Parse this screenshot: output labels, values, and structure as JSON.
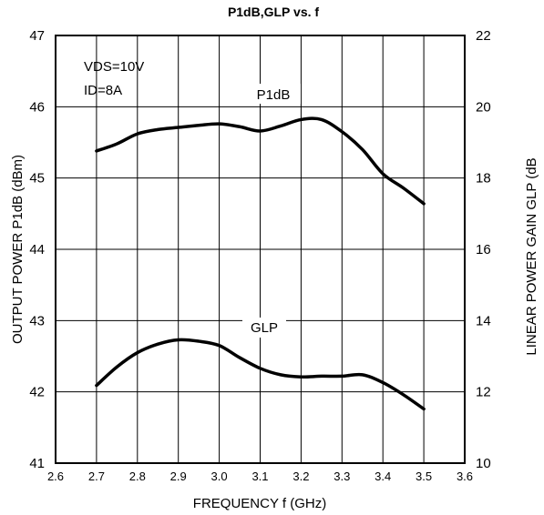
{
  "chart_data": {
    "type": "line",
    "title": "P1dB,GLP vs. f",
    "xlabel": "FREQUENCY f (GHz)",
    "ylabel_left": "OUTPUT POWER P1dB (dBm)",
    "ylabel_right": "LINEAR POWER GAIN GLP (dB",
    "x_ticks": [
      "2.6",
      "2.7",
      "2.8",
      "2.9",
      "3.0",
      "3.1",
      "3.2",
      "3.3",
      "3.4",
      "3.5",
      "3.6"
    ],
    "xlim": [
      2.6,
      3.6
    ],
    "ylim_left": [
      41,
      47
    ],
    "yticks_left": [
      "41",
      "42",
      "43",
      "44",
      "45",
      "46",
      "47"
    ],
    "ylim_right": [
      10,
      22
    ],
    "yticks_right": [
      "10",
      "12",
      "14",
      "16",
      "18",
      "20",
      "22"
    ],
    "grid": true,
    "annotations": [
      "VDS=10V",
      "ID=8A"
    ],
    "series": [
      {
        "name": "P1dB",
        "axis": "left",
        "x": [
          2.7,
          2.75,
          2.8,
          2.85,
          2.9,
          2.95,
          3.0,
          3.05,
          3.1,
          3.15,
          3.2,
          3.25,
          3.3,
          3.35,
          3.4,
          3.45,
          3.5
        ],
        "y": [
          45.38,
          45.48,
          45.62,
          45.68,
          45.71,
          45.74,
          45.76,
          45.72,
          45.66,
          45.73,
          45.82,
          45.82,
          45.65,
          45.4,
          45.06,
          44.86,
          44.64
        ]
      },
      {
        "name": "GLP",
        "axis": "right",
        "x": [
          2.7,
          2.75,
          2.8,
          2.85,
          2.9,
          2.95,
          3.0,
          3.05,
          3.1,
          3.15,
          3.2,
          3.25,
          3.3,
          3.35,
          3.4,
          3.45,
          3.5
        ],
        "y": [
          12.18,
          12.7,
          13.1,
          13.34,
          13.46,
          13.42,
          13.3,
          12.96,
          12.66,
          12.48,
          12.42,
          12.44,
          12.44,
          12.48,
          12.26,
          11.92,
          11.52
        ]
      }
    ]
  }
}
